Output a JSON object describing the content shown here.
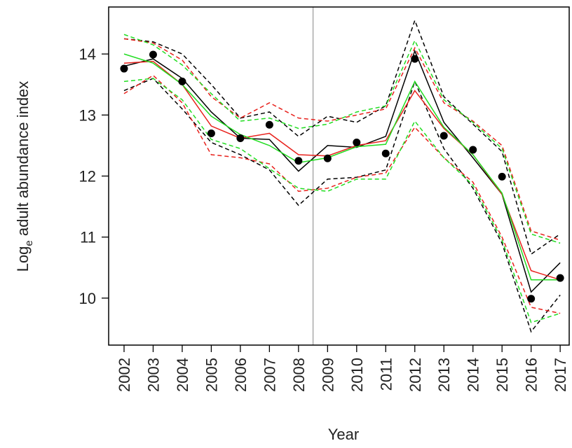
{
  "chart_data": {
    "type": "line",
    "xlabel": "Year",
    "ylabel": [
      "Log",
      "e",
      " adult abundance index"
    ],
    "x": [
      2002,
      2003,
      2004,
      2005,
      2006,
      2007,
      2008,
      2009,
      2010,
      2011,
      2012,
      2013,
      2014,
      2015,
      2016,
      2017
    ],
    "xlim": [
      2001.47,
      2017.31
    ],
    "xticks": [
      2002,
      2003,
      2004,
      2005,
      2006,
      2007,
      2008,
      2009,
      2010,
      2011,
      2012,
      2013,
      2014,
      2015,
      2016,
      2017
    ],
    "ylim": [
      9.23,
      14.77
    ],
    "yticks": [
      10,
      11,
      12,
      13,
      14
    ],
    "vline": 2008.5,
    "vline_color": "#aaaaaa",
    "points": {
      "color": "#000000",
      "values": [
        13.76,
        13.99,
        13.55,
        12.7,
        12.62,
        12.84,
        12.25,
        12.29,
        12.55,
        12.37,
        13.92,
        12.66,
        12.43,
        11.99,
        9.99,
        10.33
      ]
    },
    "series": [
      {
        "color": "#000000",
        "dashed": true,
        "values": [
          14.25,
          14.2,
          14.0,
          13.5,
          12.95,
          13.05,
          12.65,
          12.98,
          12.88,
          13.15,
          14.55,
          13.3,
          12.85,
          12.4,
          10.72,
          11.05
        ]
      },
      {
        "color": "#000000",
        "dashed": true,
        "values": [
          13.4,
          13.6,
          13.1,
          12.55,
          12.35,
          12.1,
          11.52,
          11.95,
          11.98,
          12.1,
          13.55,
          12.45,
          11.8,
          10.9,
          9.45,
          10.05
        ]
      },
      {
        "color": "#e8221d",
        "dashed": true,
        "values": [
          14.25,
          14.18,
          13.9,
          13.3,
          12.95,
          13.2,
          12.95,
          12.9,
          13.0,
          13.1,
          14.1,
          13.2,
          12.9,
          12.5,
          11.1,
          10.95
        ]
      },
      {
        "color": "#e8221d",
        "dashed": true,
        "values": [
          13.35,
          13.65,
          13.2,
          12.35,
          12.3,
          12.2,
          11.75,
          11.8,
          11.98,
          12.05,
          12.8,
          12.3,
          11.9,
          11.0,
          9.85,
          9.75
        ]
      },
      {
        "color": "#22dd22",
        "dashed": true,
        "values": [
          14.32,
          14.15,
          13.82,
          13.35,
          12.9,
          12.95,
          12.78,
          12.85,
          13.05,
          13.15,
          14.22,
          13.25,
          12.88,
          12.45,
          11.05,
          10.9
        ]
      },
      {
        "color": "#22dd22",
        "dashed": true,
        "values": [
          13.55,
          13.6,
          13.25,
          12.6,
          12.45,
          12.12,
          11.8,
          11.75,
          11.95,
          11.95,
          12.9,
          12.3,
          11.85,
          10.95,
          9.6,
          9.75
        ]
      },
      {
        "color": "#000000",
        "dashed": false,
        "values": [
          13.8,
          13.92,
          13.6,
          13.05,
          12.62,
          12.6,
          12.08,
          12.5,
          12.47,
          12.65,
          14.05,
          12.88,
          12.3,
          11.7,
          10.1,
          10.58
        ]
      },
      {
        "color": "#e8221d",
        "dashed": false,
        "values": [
          13.85,
          13.88,
          13.5,
          12.82,
          12.62,
          12.7,
          12.35,
          12.33,
          12.5,
          12.58,
          13.4,
          12.78,
          12.35,
          11.7,
          10.45,
          10.3
        ]
      },
      {
        "color": "#22dd22",
        "dashed": false,
        "values": [
          14.0,
          13.85,
          13.5,
          12.98,
          12.68,
          12.5,
          12.22,
          12.3,
          12.48,
          12.52,
          13.55,
          12.8,
          12.35,
          11.72,
          10.3,
          10.3
        ]
      }
    ]
  }
}
